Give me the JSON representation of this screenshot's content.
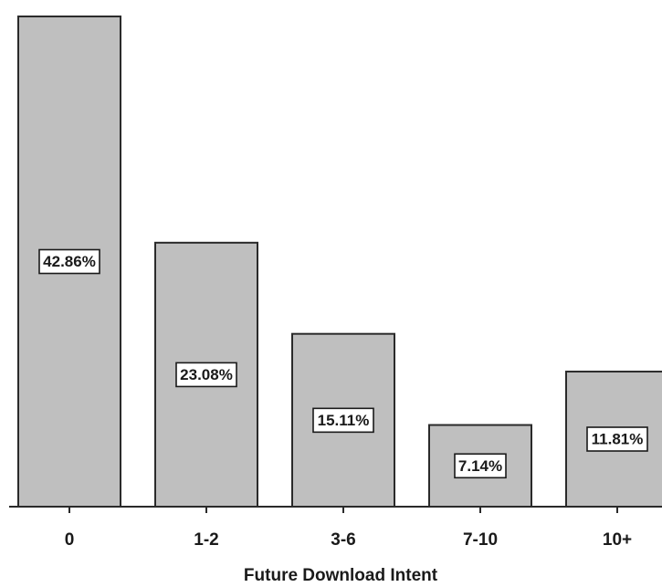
{
  "chart_data": {
    "type": "bar",
    "categories": [
      "0",
      "1-2",
      "3-6",
      "7-10",
      "10+"
    ],
    "values": [
      42.86,
      23.08,
      15.11,
      7.14,
      11.81
    ],
    "data_labels": [
      "42.86%",
      "23.08%",
      "15.11%",
      "7.14%",
      "11.81%"
    ],
    "title": "",
    "xlabel": "Future Download Intent",
    "ylabel": "",
    "ylim": [
      0,
      43.5
    ],
    "grid": false,
    "legend": "none",
    "colors": {
      "bar_fill": "#bfbfbf",
      "bar_stroke": "#2a2a2a",
      "label_box": "#ffffff"
    }
  }
}
